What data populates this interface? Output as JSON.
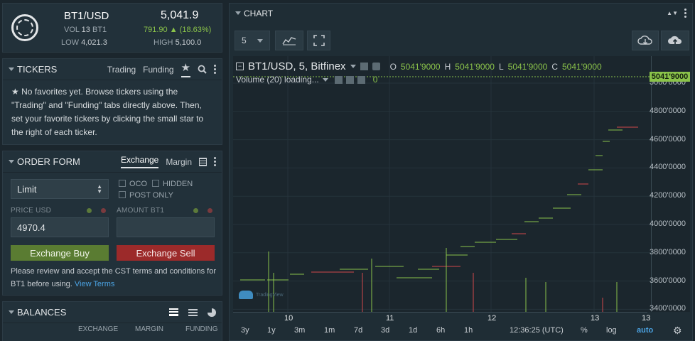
{
  "ticker": {
    "symbol": "BT1/USD",
    "last_price": "5,041.9",
    "volume_label": "VOL",
    "volume_value": "13",
    "volume_unit": "BT1",
    "change": "791.90",
    "change_pct": "(18.63%)",
    "low_label": "LOW",
    "low_value": "4,021.3",
    "high_label": "HIGH",
    "high_value": "5,100.0"
  },
  "tickers_panel": {
    "title": "TICKERS",
    "tab_trading": "Trading",
    "tab_funding": "Funding",
    "empty_msg": "No favorites yet. Browse tickers using the \"Trading\" and \"Funding\" tabs directly above. Then, set your favorite tickers by clicking the small star to the right of each ticker."
  },
  "order_form": {
    "title": "ORDER FORM",
    "tab_exchange": "Exchange",
    "tab_margin": "Margin",
    "order_type": "Limit",
    "oco_label": "OCO",
    "hidden_label": "HIDDEN",
    "post_only_label": "POST ONLY",
    "price_label": "PRICE USD",
    "price_value": "4970.4",
    "amount_label": "AMOUNT BT1",
    "amount_value": "",
    "buy_label": "Exchange Buy",
    "sell_label": "Exchange Sell",
    "terms_text": "Please review and accept the CST terms and conditions for BT1 before using.",
    "terms_link": "View Terms"
  },
  "balances": {
    "title": "BALANCES",
    "col_exchange": "EXCHANGE",
    "col_margin": "MARGIN",
    "col_funding": "FUNDING"
  },
  "chart_panel": {
    "title": "CHART",
    "interval": "5",
    "legend_title": "BT1/USD, 5, Bitfinex",
    "o_label": "O",
    "o_value": "5041'9000",
    "h_label": "H",
    "h_value": "5041'9000",
    "l_label": "L",
    "l_value": "5041'9000",
    "c_label": "C",
    "c_value": "5041'9000",
    "volume_label": "Volume (20) loading...",
    "volume_value": "0",
    "last_price_tag": "5041'9000",
    "watermark": "TradingView",
    "y_ticks": [
      "5000'0000",
      "4800'0000",
      "4600'0000",
      "4400'0000",
      "4200'0000",
      "4000'0000",
      "3800'0000",
      "3600'0000",
      "3400'0000"
    ],
    "x_ticks": [
      "10",
      "11",
      "12",
      "13",
      "13"
    ],
    "ranges": [
      "3y",
      "1y",
      "3m",
      "1m",
      "7d",
      "3d",
      "1d",
      "6h",
      "1h"
    ],
    "clock": "12:36:25 (UTC)",
    "pct": "%",
    "log": "log",
    "auto": "auto"
  },
  "colors": {
    "up": "#8ac24a",
    "down": "#d0484c",
    "buy": "#5a7c32",
    "sell": "#9c2a2a",
    "accent": "#4ba3e3"
  }
}
